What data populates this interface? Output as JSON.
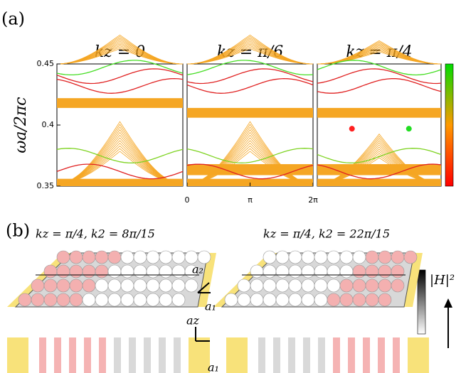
{
  "panel_a": {
    "label": "(a)",
    "y_label": "ωa/2πc",
    "ylim": [
      0.35,
      0.45
    ],
    "yticks": [
      0.35,
      0.4,
      0.45
    ],
    "xlim": [
      0,
      6.2832
    ],
    "xticks": [
      {
        "value": 0,
        "label": "0"
      },
      {
        "value": 3.1416,
        "label": "π"
      },
      {
        "value": 6.2832,
        "label": "2π"
      }
    ],
    "panels": [
      {
        "title": "kz = 0"
      },
      {
        "title": "kz = π/6"
      },
      {
        "title": "kz = π/4"
      }
    ]
  },
  "panel_b": {
    "label": "(b)",
    "captions": [
      "kz = π/4,    k2 = 8π/15",
      "kz = π/4,    k2 = 22π/15"
    ],
    "colorbar_label": "|H|²",
    "axis_labels": [
      "a₂",
      "a₁",
      "az",
      "a₁"
    ]
  }
}
